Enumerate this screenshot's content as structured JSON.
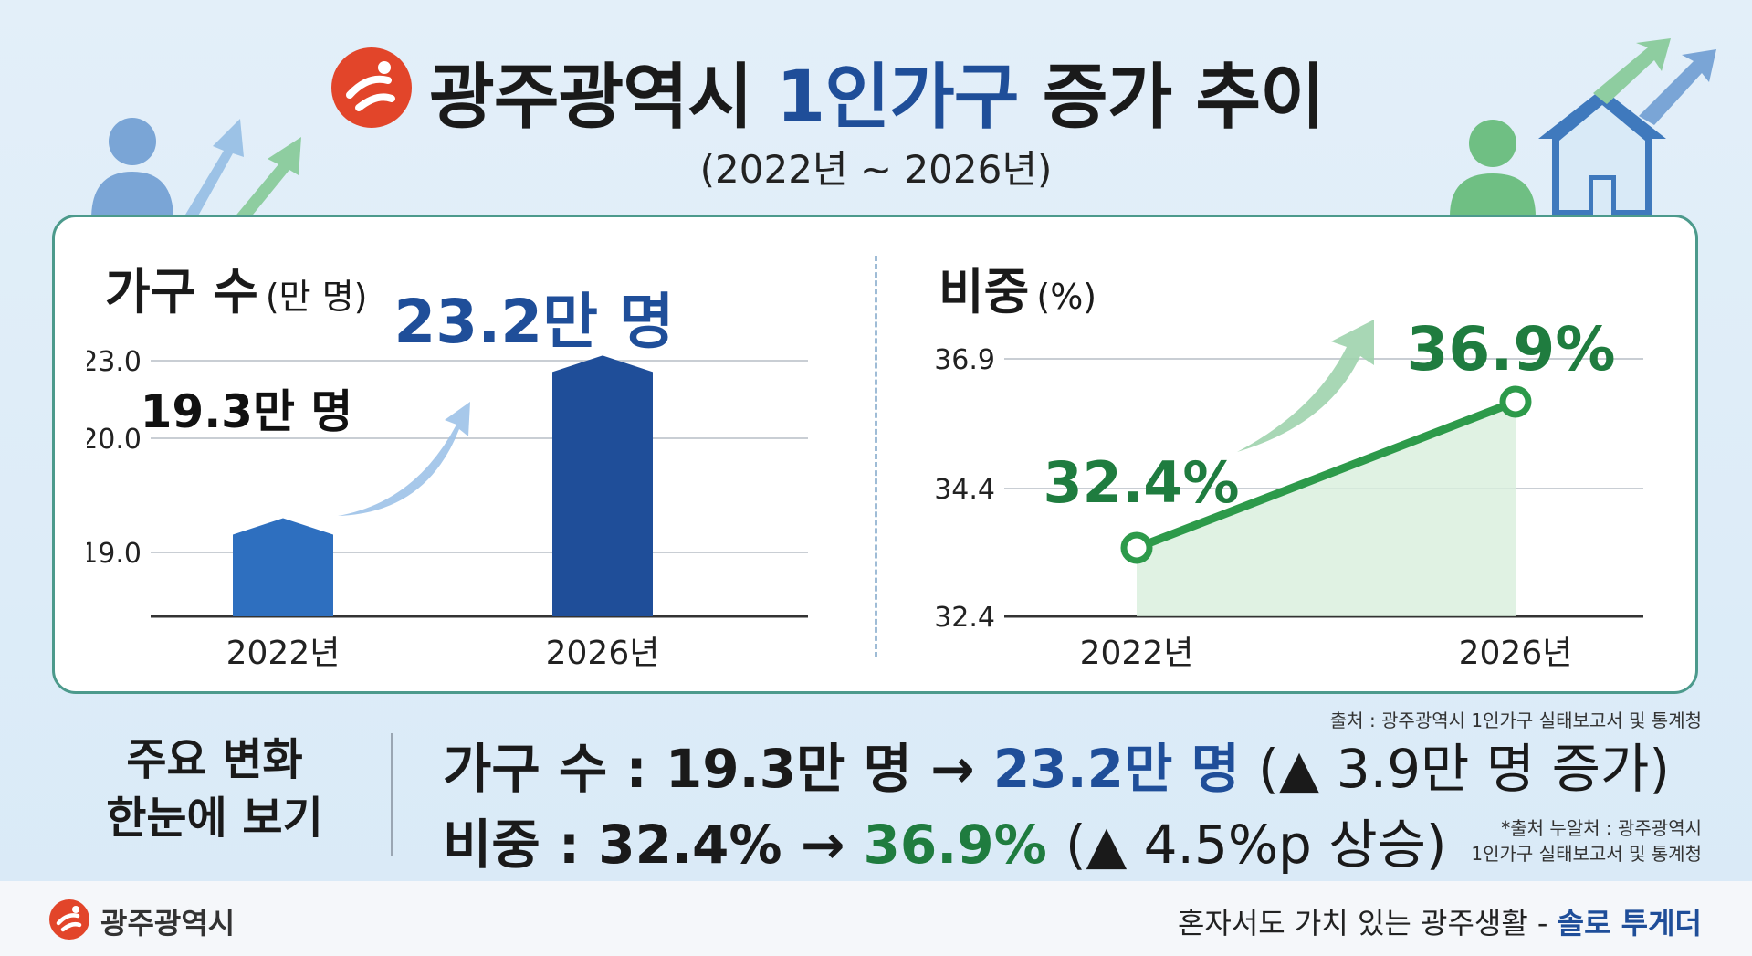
{
  "header": {
    "title_main": "광주광역시",
    "title_accent": "1인가구",
    "title_tail": "증가 추이",
    "subtitle": "(2022년 ~ 2026년)"
  },
  "chart_data": [
    {
      "type": "bar",
      "title": "가구 수",
      "unit": "(만 명)",
      "categories": [
        "2022년",
        "2026년"
      ],
      "values": [
        19.3,
        23.2
      ],
      "data_labels": [
        "19.3만 명",
        "23.2만 명"
      ],
      "y_ticks": [
        "23.0",
        "20.0",
        "19.0"
      ],
      "colors": [
        "#2e6fbf",
        "#1f4e99"
      ],
      "grid": true
    },
    {
      "type": "line",
      "title": "비중",
      "unit": "(%)",
      "categories": [
        "2022년",
        "2026년"
      ],
      "values": [
        32.4,
        36.9
      ],
      "data_labels": [
        "32.4%",
        "36.9%"
      ],
      "y_ticks": [
        "36.9",
        "34.4",
        "32.4"
      ],
      "ylim": [
        32.4,
        36.9
      ],
      "colors": [
        "#2d9a4a"
      ],
      "grid": true
    }
  ],
  "source": "출처 : 광주광역시 1인가구 실태보고서 및 통계청",
  "summary": {
    "heading_line1": "주요 변화",
    "heading_line2": "한눈에 보기",
    "households_label": "가구 수 : 19.3만 명 →",
    "households_value": "23.2만 명",
    "households_change": "(▲ 3.9만 명 증가)",
    "share_label": "비중 : 32.4% →",
    "share_value": "36.9%",
    "share_change": "(▲ 4.5%p 상승)",
    "note_line1": "*출처 누알처 : 광주광역시",
    "note_line2": "1인가구 실태보고서 및 통계청"
  },
  "footer": {
    "org": "광주광역시",
    "slogan": "혼자서도 가치 있는 광주생활 -",
    "brand": "솔로 투게더"
  },
  "icons": [
    "gwangju-logo-icon",
    "person-icon",
    "house-icon",
    "growth-arrow-icon"
  ],
  "theme": {
    "blue": "#1f4e99",
    "green": "#1f7c3f",
    "logo_red": "#e2452a",
    "border": "#4c9a8c"
  }
}
